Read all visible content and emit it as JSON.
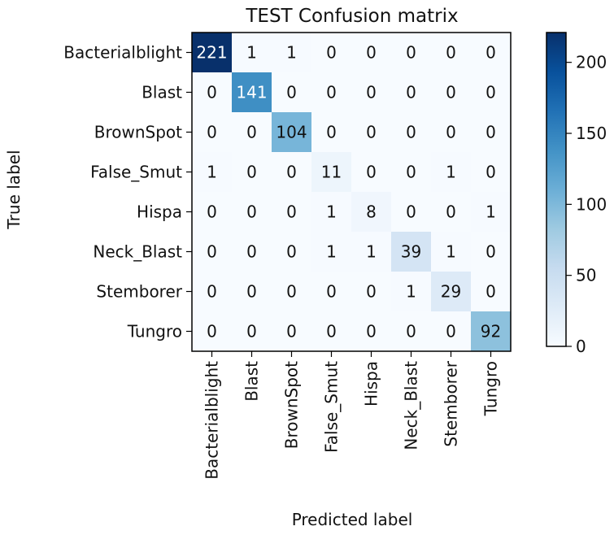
{
  "chart_data": {
    "type": "heatmap",
    "title": "TEST Confusion matrix",
    "xlabel": "Predicted label",
    "ylabel": "True label",
    "row_labels": [
      "Bacterialblight",
      "Blast",
      "BrownSpot",
      "False_Smut",
      "Hispa",
      "Neck_Blast",
      "Stemborer",
      "Tungro"
    ],
    "col_labels": [
      "Bacterialblight",
      "Blast",
      "BrownSpot",
      "False_Smut",
      "Hispa",
      "Neck_Blast",
      "Stemborer",
      "Tungro"
    ],
    "matrix": [
      [
        221,
        1,
        1,
        0,
        0,
        0,
        0,
        0
      ],
      [
        0,
        141,
        0,
        0,
        0,
        0,
        0,
        0
      ],
      [
        0,
        0,
        104,
        0,
        0,
        0,
        0,
        0
      ],
      [
        1,
        0,
        0,
        11,
        0,
        0,
        1,
        0
      ],
      [
        0,
        0,
        0,
        1,
        8,
        0,
        0,
        1
      ],
      [
        0,
        0,
        0,
        1,
        1,
        39,
        1,
        0
      ],
      [
        0,
        0,
        0,
        0,
        0,
        1,
        29,
        0
      ],
      [
        0,
        0,
        0,
        0,
        0,
        0,
        0,
        92
      ]
    ],
    "colormap": "Blues",
    "vmin": 0,
    "vmax": 221,
    "colorbar_ticks": [
      0,
      50,
      100,
      150,
      200
    ]
  }
}
